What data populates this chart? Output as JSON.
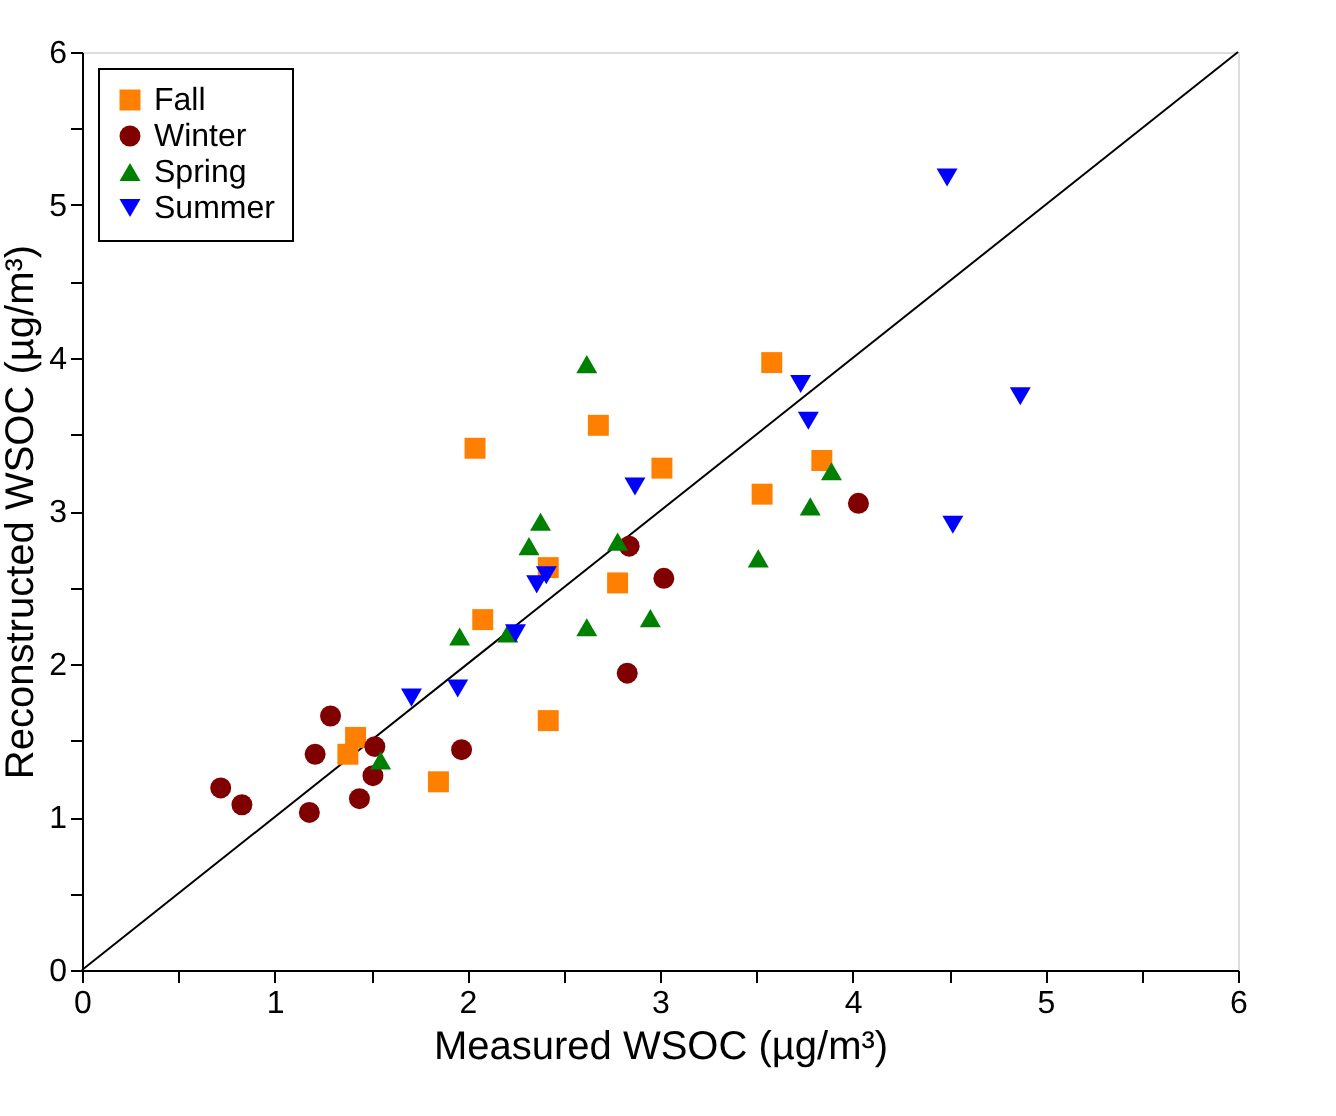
{
  "chart_data": {
    "type": "scatter",
    "xlabel": "Measured WSOC (µg/m³)",
    "ylabel": "Reconstructed WSOC (µg/m³)",
    "xlim": [
      0,
      6
    ],
    "ylim": [
      0,
      6
    ],
    "xticks": [
      0,
      {
        "value": 0.5,
        "label": null
      },
      1,
      {
        "value": 1.5,
        "label": null
      },
      2,
      {
        "value": 2.5,
        "label": null
      },
      3,
      {
        "value": 3.5,
        "label": null
      },
      4,
      {
        "value": 4.5,
        "label": null
      },
      5,
      {
        "value": 5.5,
        "label": null
      },
      6
    ],
    "yticks": [
      0,
      {
        "value": 0.5,
        "label": null
      },
      1,
      {
        "value": 1.5,
        "label": null
      },
      2,
      {
        "value": 2.5,
        "label": null
      },
      3,
      {
        "value": 3.5,
        "label": null
      },
      4,
      {
        "value": 4.5,
        "label": null
      },
      5,
      {
        "value": 5.5,
        "label": null
      },
      6
    ],
    "grid": false,
    "legend": "top left",
    "series": [
      {
        "name": "Fall",
        "color": "#ff8000",
        "marker": "square",
        "x": [
          2.68,
          2.04,
          3.01,
          2.42,
          2.78,
          2.08,
          2.42,
          1.42,
          1.38,
          1.85,
          3.58,
          3.84,
          3.53
        ],
        "values": [
          3.56,
          3.41,
          3.28,
          2.63,
          2.53,
          2.29,
          1.63,
          1.52,
          1.41,
          1.23,
          3.97,
          3.33,
          3.11
        ]
      },
      {
        "name": "Winter",
        "color": "#800000",
        "marker": "circle",
        "x": [
          2.84,
          3.02,
          2.83,
          1.29,
          0.72,
          0.83,
          1.18,
          1.21,
          1.52,
          1.51,
          1.44,
          1.97,
          4.03
        ],
        "values": [
          2.77,
          2.56,
          1.94,
          1.66,
          1.19,
          1.08,
          1.03,
          1.41,
          1.46,
          1.27,
          1.12,
          1.44,
          3.05
        ]
      },
      {
        "name": "Spring",
        "color": "#008000",
        "marker": "triangle",
        "x": [
          2.62,
          2.38,
          2.32,
          2.78,
          2.95,
          2.62,
          1.96,
          2.21,
          1.55,
          3.89,
          3.78,
          3.51
        ],
        "values": [
          3.96,
          2.93,
          2.77,
          2.8,
          2.3,
          2.24,
          2.18,
          2.2,
          1.37,
          3.26,
          3.03,
          2.69
        ]
      },
      {
        "name": "Summer",
        "color": "#0000ff",
        "marker": "triangle-down",
        "x": [
          2.87,
          2.41,
          2.36,
          2.25,
          1.95,
          1.71,
          4.49,
          3.73,
          4.87,
          3.77,
          4.52
        ],
        "values": [
          3.16,
          2.58,
          2.52,
          2.2,
          1.84,
          1.78,
          5.18,
          3.83,
          3.75,
          3.59,
          2.91
        ]
      },
      {
        "type": "line",
        "color": "#000000",
        "x": [
          0,
          6
        ],
        "values": [
          0,
          6
        ]
      }
    ]
  }
}
